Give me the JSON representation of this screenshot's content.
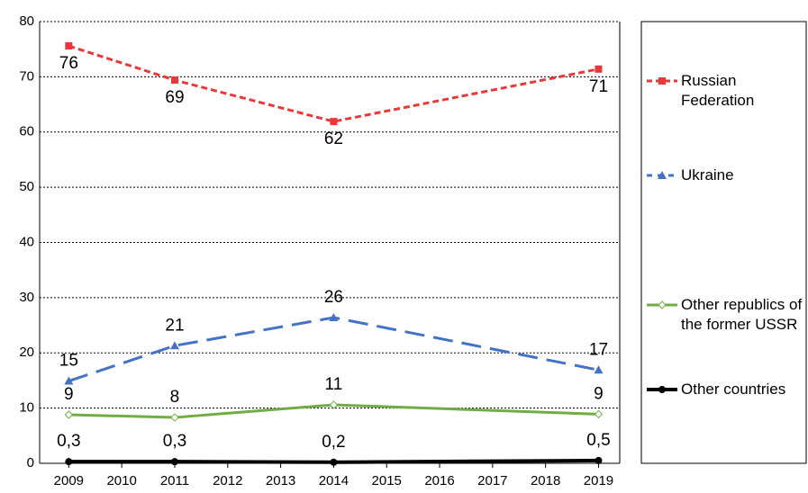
{
  "chart_data": {
    "type": "line",
    "x": [
      2009,
      2011,
      2014,
      2019
    ],
    "xlim": [
      2008.45,
      2019.4
    ],
    "xticks": [
      2009,
      2010,
      2011,
      2012,
      2013,
      2014,
      2015,
      2016,
      2017,
      2018,
      2019
    ],
    "ylim": [
      0,
      80
    ],
    "yticks": [
      0,
      10,
      20,
      30,
      40,
      50,
      60,
      70,
      80
    ],
    "grid": true,
    "legend": "right",
    "series": [
      {
        "name": "Russian Federation",
        "color": "#e8383a",
        "values": [
          75.6,
          69.4,
          61.9,
          71.4
        ],
        "value_labels": [
          "76",
          "69",
          "62",
          "71"
        ]
      },
      {
        "name": "Ukraine",
        "color": "#4472c4",
        "values": [
          14.9,
          21.3,
          26.4,
          16.9
        ],
        "value_labels": [
          "15",
          "21",
          "26",
          "17"
        ]
      },
      {
        "name": "Other republics of the former USSR",
        "color": "#70ad47",
        "values": [
          8.8,
          8.3,
          10.6,
          8.9
        ],
        "value_labels": [
          "9",
          "8",
          "11",
          "9"
        ]
      },
      {
        "name": "Other countries",
        "color": "#000000",
        "values": [
          0.3,
          0.3,
          0.2,
          0.5
        ],
        "value_labels": [
          "0,3",
          "0,3",
          "0,2",
          "0,5"
        ]
      }
    ]
  }
}
